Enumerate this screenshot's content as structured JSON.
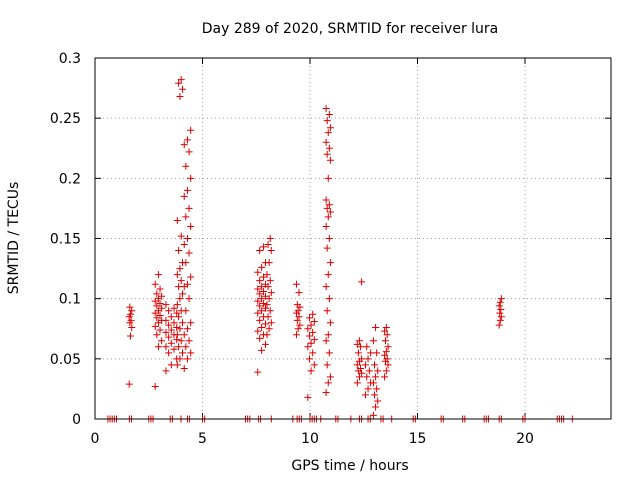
{
  "chart_data": {
    "type": "scatter",
    "title": "Day 289 of 2020, SRMTID for receiver lura",
    "xlabel": "GPS time / hours",
    "ylabel": "SRMTID / TECUs",
    "xlim": [
      0,
      24
    ],
    "ylim": [
      0,
      0.3
    ],
    "xticks": [
      0,
      5,
      10,
      15,
      20
    ],
    "yticks": [
      0,
      0.05,
      0.1,
      0.15,
      0.2,
      0.25,
      0.3
    ],
    "xtick_labels": [
      "0",
      "5",
      "10",
      "15",
      "20"
    ],
    "ytick_labels": [
      "0",
      "0.05",
      "0.1",
      "0.15",
      "0.2",
      "0.25",
      "0.3"
    ],
    "grid": true,
    "marker": "plus",
    "series_color": "#e00000",
    "zero_band_x": [
      0.6,
      0.7,
      0.8,
      0.9,
      1.0,
      1.6,
      1.7,
      2.5,
      2.6,
      2.7,
      3.5,
      3.6,
      4.0,
      4.3,
      4.4,
      5.0,
      5.1,
      7.0,
      7.1,
      7.2,
      7.6,
      7.7,
      8.2,
      9.2,
      9.4,
      9.5,
      9.6,
      10.0,
      10.1,
      10.2,
      10.3,
      10.5,
      11.2,
      11.3,
      11.9,
      12.3,
      12.4,
      12.7,
      12.8,
      13.3,
      13.4,
      13.8,
      14.8,
      14.9,
      16.1,
      16.2,
      17.1,
      17.2,
      18.1,
      18.2,
      18.3,
      18.8,
      18.9,
      19.9,
      20.0,
      21.5,
      21.6,
      21.7,
      21.8,
      22.2
    ],
    "clusters": [
      {
        "x_center": 1.65,
        "x_spread": 0.06,
        "values": [
          0.029,
          0.069,
          0.076,
          0.08,
          0.082,
          0.085,
          0.087,
          0.09,
          0.093
        ]
      },
      {
        "x_center": 2.95,
        "x_spread": 0.15,
        "values": [
          0.027,
          0.06,
          0.065,
          0.07,
          0.074,
          0.077,
          0.08,
          0.082,
          0.084,
          0.086,
          0.088,
          0.09,
          0.092,
          0.094,
          0.096,
          0.098,
          0.1,
          0.102,
          0.104,
          0.108,
          0.112,
          0.12
        ]
      },
      {
        "x_center": 3.55,
        "x_spread": 0.25,
        "values": [
          0.04,
          0.045,
          0.05,
          0.055,
          0.058,
          0.06,
          0.063,
          0.066,
          0.068,
          0.07,
          0.072,
          0.074,
          0.076,
          0.078,
          0.08,
          0.082,
          0.085,
          0.088,
          0.09,
          0.092,
          0.095
        ]
      },
      {
        "x_center": 3.95,
        "x_spread": 0.12,
        "values": [
          0.045,
          0.05,
          0.055,
          0.06,
          0.065,
          0.07,
          0.075,
          0.08,
          0.085,
          0.09,
          0.095,
          0.1,
          0.104,
          0.11,
          0.115,
          0.12,
          0.125,
          0.13,
          0.14,
          0.152,
          0.165,
          0.268,
          0.274,
          0.279,
          0.282
        ]
      },
      {
        "x_center": 4.3,
        "x_spread": 0.15,
        "values": [
          0.042,
          0.05,
          0.055,
          0.06,
          0.065,
          0.07,
          0.075,
          0.08,
          0.09,
          0.1,
          0.11,
          0.112,
          0.118,
          0.13,
          0.138,
          0.145,
          0.15,
          0.16,
          0.168,
          0.175,
          0.185,
          0.19,
          0.2,
          0.21,
          0.222,
          0.228,
          0.232,
          0.24
        ]
      },
      {
        "x_center": 7.75,
        "x_spread": 0.18,
        "values": [
          0.039,
          0.057,
          0.062,
          0.067,
          0.07,
          0.073,
          0.076,
          0.079,
          0.082,
          0.085,
          0.088,
          0.09,
          0.092,
          0.094,
          0.096,
          0.098,
          0.1,
          0.102,
          0.104,
          0.106,
          0.108,
          0.11,
          0.112,
          0.115,
          0.118,
          0.122,
          0.126,
          0.13,
          0.14,
          0.143
        ]
      },
      {
        "x_center": 8.1,
        "x_spread": 0.1,
        "values": [
          0.07,
          0.075,
          0.08,
          0.085,
          0.09,
          0.095,
          0.1,
          0.105,
          0.11,
          0.115,
          0.12,
          0.13,
          0.14,
          0.145,
          0.15
        ]
      },
      {
        "x_center": 9.45,
        "x_spread": 0.08,
        "values": [
          0.07,
          0.075,
          0.078,
          0.082,
          0.085,
          0.088,
          0.09,
          0.093,
          0.095,
          0.105,
          0.112
        ]
      },
      {
        "x_center": 10.05,
        "x_spread": 0.15,
        "values": [
          0.018,
          0.04,
          0.045,
          0.05,
          0.055,
          0.06,
          0.063,
          0.066,
          0.069,
          0.072,
          0.075,
          0.078,
          0.081,
          0.084,
          0.087
        ]
      },
      {
        "x_center": 10.85,
        "x_spread": 0.1,
        "values": [
          0.022,
          0.03,
          0.035,
          0.045,
          0.055,
          0.065,
          0.07,
          0.08,
          0.09,
          0.1,
          0.11,
          0.12,
          0.13,
          0.142,
          0.15,
          0.16,
          0.168,
          0.172,
          0.175,
          0.178,
          0.182,
          0.2,
          0.215,
          0.22,
          0.225,
          0.23,
          0.238,
          0.242,
          0.248,
          0.253,
          0.258
        ]
      },
      {
        "x_center": 12.3,
        "x_spread": 0.1,
        "values": [
          0.03,
          0.035,
          0.038,
          0.04,
          0.042,
          0.045,
          0.048,
          0.05,
          0.055,
          0.06,
          0.062,
          0.065,
          0.114
        ]
      },
      {
        "x_center": 12.7,
        "x_spread": 0.12,
        "values": [
          0.02,
          0.025,
          0.03,
          0.035,
          0.04,
          0.045,
          0.05,
          0.055,
          0.06
        ]
      },
      {
        "x_center": 13.05,
        "x_spread": 0.1,
        "values": [
          0.003,
          0.01,
          0.015,
          0.02,
          0.025,
          0.03,
          0.035,
          0.04,
          0.045,
          0.055,
          0.065,
          0.076
        ]
      },
      {
        "x_center": 13.55,
        "x_spread": 0.08,
        "values": [
          0.035,
          0.04,
          0.045,
          0.048,
          0.05,
          0.053,
          0.056,
          0.06,
          0.065,
          0.07,
          0.073,
          0.076
        ]
      },
      {
        "x_center": 18.85,
        "x_spread": 0.05,
        "values": [
          0.078,
          0.082,
          0.085,
          0.088,
          0.091,
          0.094,
          0.097,
          0.1
        ]
      }
    ]
  }
}
